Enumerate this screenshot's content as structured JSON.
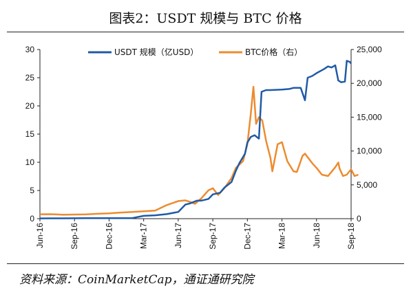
{
  "page": {
    "title": "图表2：USDT 规模与 BTC 价格",
    "source": "资料来源：CoinMarketCap，通证通研究院"
  },
  "chart_data": {
    "type": "line",
    "x_tick_labels": [
      "Jun-16",
      "Sep-16",
      "Dec-16",
      "Mar-17",
      "Jun-17",
      "Sep-17",
      "Dec-17",
      "Mar-18",
      "Jun-18",
      "Sep-18"
    ],
    "x_range": [
      "2016-06",
      "2018-09"
    ],
    "left_axis": {
      "ylim": [
        0,
        30
      ],
      "ticks": [
        "0",
        "5",
        "10",
        "15",
        "20",
        "25",
        "30"
      ]
    },
    "right_axis": {
      "ylim": [
        0,
        25000
      ],
      "ticks": [
        "0",
        "5,000",
        "10,000",
        "15,000",
        "20,000",
        "25,000"
      ]
    },
    "legend_position": "top-center",
    "grid": false,
    "series": [
      {
        "name": "USDT 规模（亿USD）",
        "axis": "left",
        "color": "#1f5aa6",
        "points": [
          [
            "2016-06",
            0.05
          ],
          [
            "2016-07",
            0.06
          ],
          [
            "2016-08",
            0.06
          ],
          [
            "2016-09",
            0.07
          ],
          [
            "2016-10",
            0.08
          ],
          [
            "2016-11",
            0.08
          ],
          [
            "2016-12",
            0.1
          ],
          [
            "2017-01",
            0.1
          ],
          [
            "2017-02",
            0.1
          ],
          [
            "2017-03",
            0.5
          ],
          [
            "2017-04",
            0.6
          ],
          [
            "2017-05",
            0.8
          ],
          [
            "2017-06",
            1.2
          ],
          [
            "2017-06-20",
            2.5
          ],
          [
            "2017-07",
            2.7
          ],
          [
            "2017-07-20",
            3.2
          ],
          [
            "2017-08",
            3.2
          ],
          [
            "2017-08-20",
            3.5
          ],
          [
            "2017-09",
            4.3
          ],
          [
            "2017-09-20",
            4.6
          ],
          [
            "2017-10",
            5.5
          ],
          [
            "2017-10-20",
            6.5
          ],
          [
            "2017-11",
            8.5
          ],
          [
            "2017-11-10",
            9.8
          ],
          [
            "2017-11-25",
            11.5
          ],
          [
            "2017-12",
            13.5
          ],
          [
            "2017-12-10",
            14.5
          ],
          [
            "2017-12-20",
            14.8
          ],
          [
            "2018-01",
            14.2
          ],
          [
            "2018-01-08",
            22.5
          ],
          [
            "2018-01-20",
            22.8
          ],
          [
            "2018-02",
            22.8
          ],
          [
            "2018-03",
            22.9
          ],
          [
            "2018-03-20",
            23.0
          ],
          [
            "2018-04",
            23.2
          ],
          [
            "2018-04-20",
            23.2
          ],
          [
            "2018-05-01",
            21.0
          ],
          [
            "2018-05-08",
            25.0
          ],
          [
            "2018-05-20",
            25.3
          ],
          [
            "2018-06",
            25.8
          ],
          [
            "2018-06-20",
            26.5
          ],
          [
            "2018-07",
            27.0
          ],
          [
            "2018-07-10",
            26.8
          ],
          [
            "2018-07-20",
            27.2
          ],
          [
            "2018-07-28",
            24.5
          ],
          [
            "2018-08-05",
            24.2
          ],
          [
            "2018-08-15",
            24.3
          ],
          [
            "2018-08-20",
            28.0
          ],
          [
            "2018-08-28",
            27.8
          ],
          [
            "2018-09",
            27.5
          ]
        ]
      },
      {
        "name": "BTC价格（右）",
        "axis": "right",
        "color": "#ed8b2e",
        "points": [
          [
            "2016-06",
            650
          ],
          [
            "2016-07",
            660
          ],
          [
            "2016-08",
            580
          ],
          [
            "2016-09",
            610
          ],
          [
            "2016-10",
            640
          ],
          [
            "2016-11",
            720
          ],
          [
            "2016-12",
            780
          ],
          [
            "2017-01",
            900
          ],
          [
            "2017-02",
            1000
          ],
          [
            "2017-03",
            1100
          ],
          [
            "2017-04",
            1200
          ],
          [
            "2017-05",
            2000
          ],
          [
            "2017-06",
            2600
          ],
          [
            "2017-06-20",
            2700
          ],
          [
            "2017-07",
            2500
          ],
          [
            "2017-07-15",
            2200
          ],
          [
            "2017-08",
            3000
          ],
          [
            "2017-08-20",
            4200
          ],
          [
            "2017-09",
            4500
          ],
          [
            "2017-09-15",
            3500
          ],
          [
            "2017-10",
            4500
          ],
          [
            "2017-10-20",
            6000
          ],
          [
            "2017-11",
            7500
          ],
          [
            "2017-11-20",
            8500
          ],
          [
            "2017-12",
            11000
          ],
          [
            "2017-12-10",
            15500
          ],
          [
            "2017-12-17",
            19500
          ],
          [
            "2017-12-24",
            14000
          ],
          [
            "2018-01",
            15000
          ],
          [
            "2018-01-10",
            14500
          ],
          [
            "2018-01-20",
            11500
          ],
          [
            "2018-02",
            9000
          ],
          [
            "2018-02-06",
            7000
          ],
          [
            "2018-02-20",
            11000
          ],
          [
            "2018-03",
            11300
          ],
          [
            "2018-03-15",
            8500
          ],
          [
            "2018-04",
            7000
          ],
          [
            "2018-04-10",
            6900
          ],
          [
            "2018-04-25",
            9300
          ],
          [
            "2018-05",
            9600
          ],
          [
            "2018-05-20",
            8200
          ],
          [
            "2018-06",
            7500
          ],
          [
            "2018-06-15",
            6500
          ],
          [
            "2018-07",
            6300
          ],
          [
            "2018-07-20",
            7600
          ],
          [
            "2018-07-28",
            8300
          ],
          [
            "2018-08",
            7400
          ],
          [
            "2018-08-10",
            6300
          ],
          [
            "2018-08-20",
            6500
          ],
          [
            "2018-09",
            7300
          ],
          [
            "2018-09-10",
            6300
          ],
          [
            "2018-09-20",
            6500
          ]
        ]
      }
    ]
  }
}
